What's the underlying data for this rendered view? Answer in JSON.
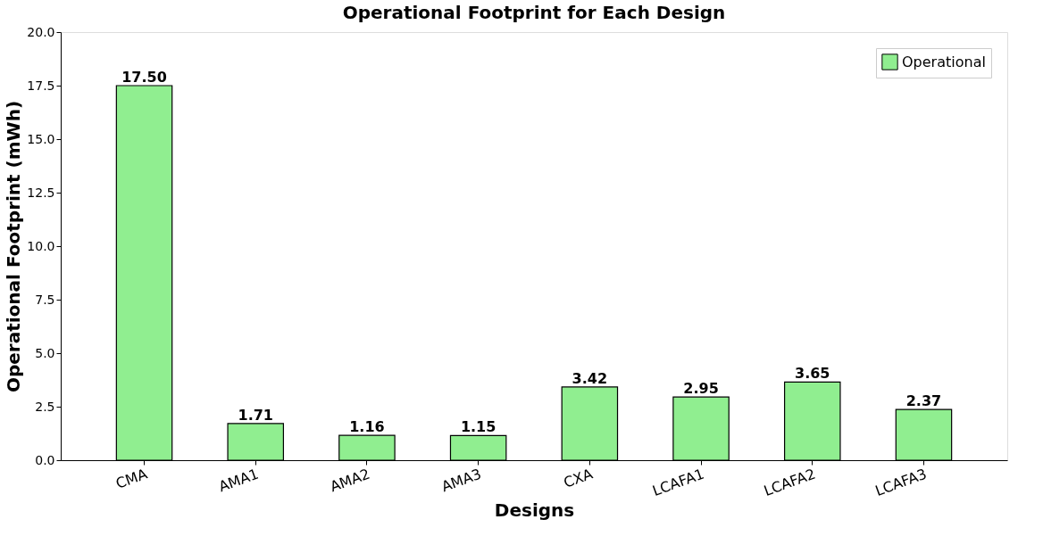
{
  "chart_data": {
    "type": "bar",
    "title": "Operational Footprint for Each Design",
    "xlabel": "Designs",
    "ylabel": "Operational Footprint (mWh)",
    "categories": [
      "CMA",
      "AMA1",
      "AMA2",
      "AMA3",
      "CXA",
      "LCAFA1",
      "LCAFA2",
      "LCAFA3"
    ],
    "series": [
      {
        "name": "Operational",
        "color": "#90ee90",
        "values": [
          17.5,
          1.71,
          1.16,
          1.15,
          3.42,
          2.95,
          3.65,
          2.37
        ],
        "value_labels": [
          "17.50",
          "1.71",
          "1.16",
          "1.15",
          "3.42",
          "2.95",
          "3.65",
          "2.37"
        ]
      }
    ],
    "ylim": [
      0,
      20
    ],
    "yticks": [
      {
        "value": 0,
        "label": "0.0"
      },
      {
        "value": 2.5,
        "label": "2.5"
      },
      {
        "value": 5,
        "label": "5.0"
      },
      {
        "value": 7.5,
        "label": "7.5"
      },
      {
        "value": 10,
        "label": "10.0"
      },
      {
        "value": 12.5,
        "label": "12.5"
      },
      {
        "value": 15,
        "label": "15.0"
      },
      {
        "value": 17.5,
        "label": "17.5"
      },
      {
        "value": 20,
        "label": "20.0"
      }
    ],
    "grid": false,
    "legend": "top right"
  }
}
